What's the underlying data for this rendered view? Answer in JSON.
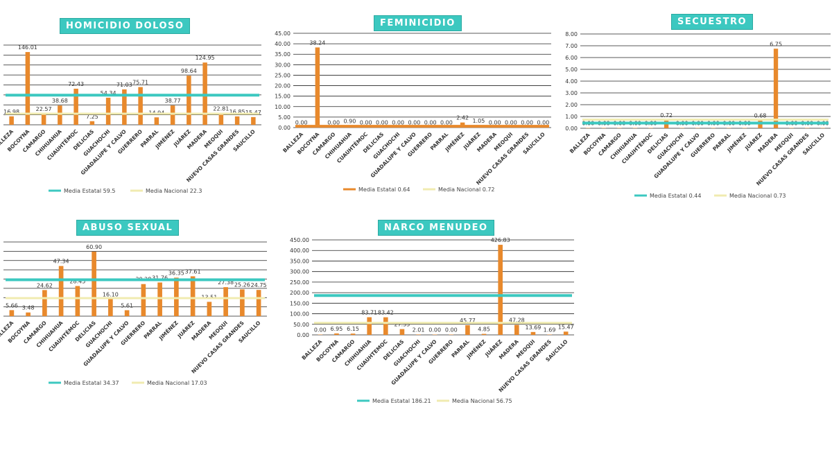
{
  "colors": {
    "bar": "#e8892c",
    "estatal": "#3cc8c0",
    "nacional": "#f0ebb0",
    "title_bg": "#3cc8c0"
  },
  "chart_data": [
    {
      "type": "bar",
      "title": "HOMICIDIO DOLOSO",
      "categories": [
        "BALLEZA",
        "BOCOYNA",
        "CAMARGO",
        "CHIHUAHUA",
        "CUAUHTÉMOC",
        "DELICIAS",
        "GUACHOCHI",
        "GUADALUPE Y CALVO",
        "GUERRERO",
        "PARRAL",
        "JIMÉNEZ",
        "JUÁREZ",
        "MADERA",
        "MEOQUI",
        "NUEVO CASAS GRANDES",
        "SAUCILLO"
      ],
      "values": [
        16.98,
        146.01,
        22.57,
        38.68,
        72.43,
        7.25,
        54.34,
        71.03,
        75.71,
        14.94,
        38.77,
        98.64,
        124.95,
        22.81,
        16.85,
        15.47
      ],
      "labels": [
        "16.98",
        "146.01",
        "22.57",
        "38.68",
        "72.43",
        "7.25",
        "54.34",
        "71.03",
        "75.71",
        "14.94",
        "38.77",
        "98.64",
        "124.95",
        "22.81",
        "16.85",
        "15.47"
      ],
      "ylim": [
        0,
        160
      ],
      "show_yaxis": false,
      "estatal": 59.5,
      "nacional": 22.3,
      "legend": [
        "Media Estatal 59.5",
        "Media Nacional 22.3"
      ],
      "line_colors": [
        "#3cc8c0",
        "#f0ebb0"
      ]
    },
    {
      "type": "bar",
      "title": "FEMINICIDIO",
      "categories": [
        "BALLEZA",
        "BOCOYNA",
        "CAMARGO",
        "CHIHUAHUA",
        "CUAUHTÉMOC",
        "DELICIAS",
        "GUACHOCHI",
        "GUADALUPE Y CALVO",
        "GUERRERO",
        "PARRAL",
        "JIMÉNEZ",
        "JUÁREZ",
        "MADERA",
        "MEOQUI",
        "NUEVO CASAS GRANDES",
        "SAUCILLO"
      ],
      "values": [
        0,
        38.24,
        0,
        0.9,
        0,
        0,
        0,
        0,
        0,
        0,
        2.42,
        1.05,
        0,
        0,
        0,
        0
      ],
      "labels": [
        "0.00",
        "38.24",
        "0.00",
        "0.90",
        "0.00",
        "0.00",
        "0.00",
        "0.00",
        "0.00",
        "0.00",
        "2.42",
        "1.05",
        "0.00",
        "0.00",
        "0.00",
        "0.00"
      ],
      "yticks": [
        "0.00",
        "5.00",
        "10.00",
        "15.00",
        "20.00",
        "25.00",
        "30.00",
        "35.00",
        "40.00",
        "45.00"
      ],
      "ylim": [
        0,
        45
      ],
      "show_yaxis": true,
      "estatal": 0.64,
      "nacional": 0.72,
      "legend": [
        "Media Estatal 0.64",
        "Media Nacional 0.72"
      ],
      "line_colors": [
        "#e8892c",
        "#f0ebb0"
      ]
    },
    {
      "type": "bar",
      "title": "SECUESTRO",
      "categories": [
        "BALLEZA",
        "BOCOYNA",
        "CAMARGO",
        "CHIHUAHUA",
        "CUAUHTÉMOC",
        "DELICIAS",
        "GUACHOCHI",
        "GUADALUPE Y CALVO",
        "GUERRERO",
        "PARRAL",
        "JIMÉNEZ",
        "JUÁREZ",
        "MADERA",
        "MEOQUI",
        "NUEVO CASAS GRANDES",
        "SAUCILLO"
      ],
      "values": [
        0,
        0,
        0,
        0,
        0,
        0.72,
        0,
        0,
        0,
        0,
        0,
        0.68,
        6.75,
        0,
        0,
        0
      ],
      "labels": [
        "0.00",
        "0.00",
        "0.00",
        "0.00",
        "0.00",
        "0.72",
        "0.00",
        "0.00",
        "0.00",
        "0.00",
        "0.00",
        "0.68",
        "6.75",
        "0.00",
        "0.00",
        "0.00"
      ],
      "yticks": [
        "0.00",
        "1.00",
        "2.00",
        "3.00",
        "4.00",
        "5.00",
        "6.00",
        "7.00",
        "8.00"
      ],
      "ylim": [
        0,
        8
      ],
      "show_yaxis": true,
      "estatal": 0.44,
      "nacional": 0.73,
      "legend": [
        "Media Estatal 0.44",
        "Media Nacional 0.73"
      ],
      "line_colors": [
        "#3cc8c0",
        "#f0ebb0"
      ]
    },
    {
      "type": "bar",
      "title": "ABUSO SEXUAL",
      "categories": [
        "BALLEZA",
        "BOCOYNA",
        "CAMARGO",
        "CHIHUAHUA",
        "CUAUHTÉMOC",
        "DELICIAS",
        "GUACHOCHI",
        "GUADALUPE Y CALVO",
        "GUERRERO",
        "PARRAL",
        "JIMÉNEZ",
        "JUÁREZ",
        "MADERA",
        "MEOQUI",
        "NUEVO CASAS GRANDES",
        "SAUCILLO"
      ],
      "values": [
        5.66,
        3.48,
        24.62,
        47.34,
        28.45,
        60.9,
        16.1,
        5.61,
        30.28,
        31.76,
        36.35,
        37.61,
        13.51,
        27.38,
        25.26,
        24.75
      ],
      "labels": [
        "5.66",
        "3.48",
        "24.62",
        "47.34",
        "28.45",
        "60.90",
        "16.10",
        "5.61",
        "30.28",
        "31.76",
        "36.35",
        "37.61",
        "13.51",
        "27.38",
        "25.26",
        "24.75"
      ],
      "ylim": [
        0,
        70
      ],
      "show_yaxis": false,
      "estatal": 34.37,
      "nacional": 17.03,
      "legend": [
        "Media Estatal 34.37",
        "Media Nacional 17.03"
      ],
      "line_colors": [
        "#3cc8c0",
        "#f0ebb0"
      ]
    },
    {
      "type": "bar",
      "title": "NARCO MENUDEO",
      "categories": [
        "BALLEZA",
        "BOCOYNA",
        "CAMARGO",
        "CHIHUAHUA",
        "CUAUHTEMOC",
        "DELICIAS",
        "GUACHOCHI",
        "GUADALUPE Y CALVO",
        "GUERRERO",
        "PARRAL",
        "JIMÉNEZ",
        "JUÁREZ",
        "MADERA",
        "MEOQUI",
        "NUEVO CASAS GRANDES",
        "SAUCILLO"
      ],
      "values": [
        0,
        6.95,
        6.15,
        83.71,
        83.42,
        27.55,
        2.01,
        0,
        0,
        45.77,
        4.85,
        426.83,
        47.28,
        13.69,
        1.69,
        15.47
      ],
      "labels": [
        "0.00",
        "6.95",
        "6.15",
        "83.71",
        "83.42",
        "27.55",
        "2.01",
        "0.00",
        "0.00",
        "45.77",
        "4.85",
        "426.83",
        "47.28",
        "13.69",
        "1.69",
        "15.47"
      ],
      "yticks": [
        "0.00",
        "50.00",
        "100.00",
        "150.00",
        "200.00",
        "250.00",
        "300.00",
        "350.00",
        "400.00",
        "450.00"
      ],
      "ylim": [
        0,
        450
      ],
      "show_yaxis": true,
      "estatal": 186.21,
      "nacional": 56.75,
      "legend": [
        "Media Estatal 186.21",
        "Media Nacional 56.75"
      ],
      "line_colors": [
        "#3cc8c0",
        "#f0ebb0"
      ]
    }
  ]
}
